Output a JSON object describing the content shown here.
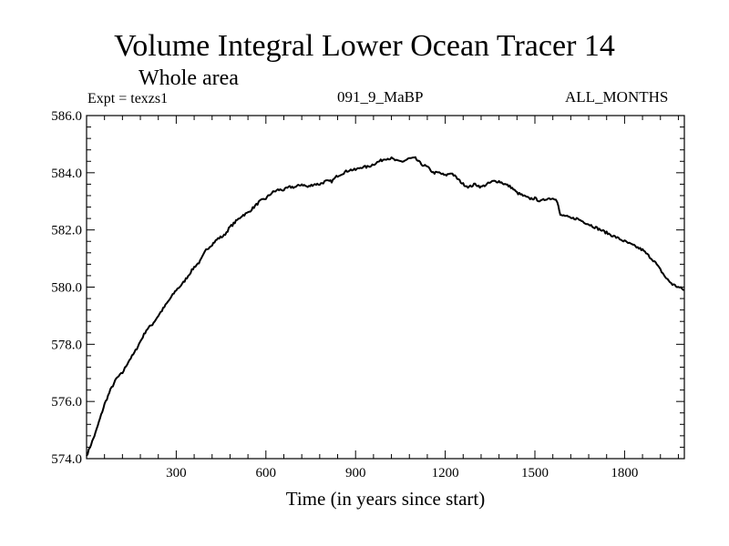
{
  "chart_data": {
    "type": "line",
    "title": "Volume Integral Lower Ocean Tracer 14",
    "subtitle": "Whole area",
    "expt_label": "Expt = texzs1",
    "period_label": "091_9_MaBP",
    "months_label": "ALL_MONTHS",
    "xlabel": "Time (in years since start)",
    "ylabel": "",
    "xlim": [
      0,
      2000
    ],
    "ylim": [
      574.0,
      586.0
    ],
    "x_ticks": [
      300,
      600,
      900,
      1200,
      1500,
      1800
    ],
    "x_tick_labels": [
      "300",
      "600",
      "900",
      "1200",
      "1500",
      "1800"
    ],
    "y_ticks": [
      574.0,
      576.0,
      578.0,
      580.0,
      582.0,
      584.0,
      586.0
    ],
    "y_tick_labels": [
      "574.0",
      "576.0",
      "578.0",
      "580.0",
      "582.0",
      "584.0",
      "586.0"
    ],
    "grid": false,
    "series": [
      {
        "name": "Lower Ocean Tracer 14",
        "color": "#000000",
        "x": [
          0,
          15,
          30,
          45,
          60,
          80,
          100,
          120,
          140,
          160,
          180,
          200,
          220,
          240,
          260,
          280,
          300,
          320,
          340,
          360,
          380,
          400,
          420,
          440,
          460,
          480,
          500,
          520,
          540,
          560,
          580,
          600,
          620,
          640,
          660,
          680,
          700,
          720,
          740,
          760,
          780,
          800,
          820,
          840,
          860,
          880,
          900,
          920,
          940,
          960,
          980,
          1000,
          1020,
          1040,
          1060,
          1080,
          1100,
          1120,
          1140,
          1160,
          1180,
          1200,
          1220,
          1240,
          1260,
          1280,
          1300,
          1320,
          1340,
          1360,
          1380,
          1400,
          1420,
          1440,
          1460,
          1480,
          1500,
          1520,
          1540,
          1560,
          1570,
          1575,
          1585,
          1600,
          1620,
          1640,
          1660,
          1680,
          1700,
          1720,
          1740,
          1760,
          1780,
          1800,
          1820,
          1840,
          1860,
          1880,
          1900,
          1920,
          1940,
          1960,
          1980,
          2000
        ],
        "values": [
          574.1,
          574.5,
          574.9,
          575.4,
          575.9,
          576.4,
          576.8,
          577.0,
          577.4,
          577.7,
          578.1,
          578.5,
          578.7,
          579.0,
          579.3,
          579.6,
          579.9,
          580.1,
          580.4,
          580.7,
          580.9,
          581.3,
          581.5,
          581.7,
          581.8,
          582.1,
          582.3,
          582.5,
          582.6,
          582.8,
          583.0,
          583.1,
          583.3,
          583.4,
          583.4,
          583.5,
          583.5,
          583.6,
          583.5,
          583.6,
          583.6,
          583.7,
          583.7,
          583.9,
          584.0,
          584.1,
          584.1,
          584.2,
          584.2,
          584.3,
          584.4,
          584.5,
          584.5,
          584.4,
          584.4,
          584.5,
          584.5,
          584.3,
          584.2,
          584.0,
          584.0,
          583.9,
          584.0,
          583.8,
          583.6,
          583.5,
          583.6,
          583.5,
          583.6,
          583.7,
          583.7,
          583.6,
          583.5,
          583.3,
          583.2,
          583.1,
          583.1,
          583.0,
          583.1,
          583.1,
          583.1,
          583.0,
          582.5,
          582.5,
          582.4,
          582.4,
          582.3,
          582.2,
          582.1,
          582.0,
          581.9,
          581.8,
          581.7,
          581.6,
          581.5,
          581.4,
          581.3,
          581.1,
          580.9,
          580.6,
          580.3,
          580.1,
          580.0,
          579.9
        ]
      }
    ]
  }
}
